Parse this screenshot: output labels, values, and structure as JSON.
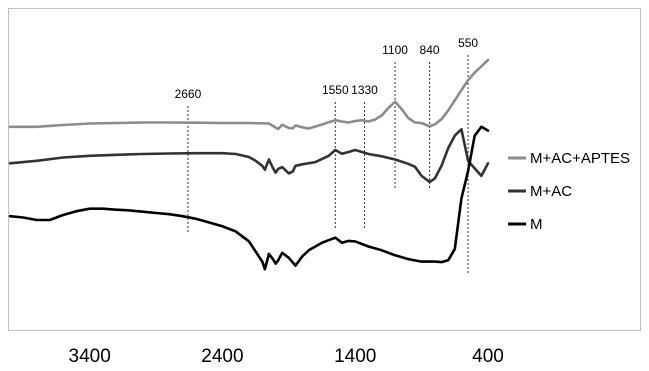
{
  "chart_data": {
    "type": "line",
    "title": "",
    "xlabel": "",
    "ylabel": "",
    "x_reversed": true,
    "xlim": [
      4000,
      400
    ],
    "x_ticks": [
      3400,
      2400,
      1400,
      400
    ],
    "x_tick_labels": [
      "3400",
      "2400",
      "1400",
      "400"
    ],
    "y_axis_shown": false,
    "ylim": [
      0,
      100
    ],
    "grid": false,
    "legend": "right",
    "annotations": [
      {
        "x": 2660,
        "label": "2660"
      },
      {
        "x": 1550,
        "label": "1550"
      },
      {
        "x": 1330,
        "label": "1330"
      },
      {
        "x": 1100,
        "label": "1100"
      },
      {
        "x": 840,
        "label": "840"
      },
      {
        "x": 550,
        "label": "550"
      }
    ],
    "series": [
      {
        "name": "M+AC+APTES",
        "color": "#8c8c8c",
        "x": [
          4000,
          3800,
          3600,
          3400,
          3200,
          3000,
          2800,
          2600,
          2400,
          2200,
          2050,
          2000,
          1980,
          1950,
          1900,
          1870,
          1850,
          1800,
          1750,
          1700,
          1650,
          1600,
          1550,
          1500,
          1450,
          1400,
          1350,
          1300,
          1250,
          1200,
          1150,
          1100,
          1050,
          1000,
          950,
          900,
          840,
          800,
          750,
          700,
          650,
          600,
          550,
          500,
          450,
          400
        ],
        "y": [
          73.5,
          73.5,
          74.2,
          74.8,
          75.0,
          75.2,
          75.2,
          75.1,
          75.0,
          75.0,
          74.8,
          73.2,
          72.6,
          74.3,
          73.0,
          72.9,
          74.0,
          73.3,
          72.8,
          73.6,
          74.4,
          75.3,
          76.1,
          75.6,
          75.2,
          75.8,
          76.1,
          75.6,
          76.4,
          78.0,
          81.0,
          83.4,
          80.5,
          77.0,
          75.2,
          75.0,
          73.6,
          74.5,
          76.5,
          80.0,
          84.0,
          88.0,
          92.0,
          95.0,
          97.5,
          100.0
        ]
      },
      {
        "name": "M+AC",
        "color": "#333333",
        "x": [
          4000,
          3800,
          3600,
          3400,
          3200,
          3000,
          2800,
          2600,
          2400,
          2300,
          2200,
          2150,
          2100,
          2080,
          2050,
          2020,
          2000,
          1980,
          1950,
          1900,
          1870,
          1850,
          1800,
          1700,
          1600,
          1550,
          1500,
          1450,
          1400,
          1350,
          1300,
          1200,
          1100,
          1000,
          950,
          900,
          840,
          800,
          750,
          700,
          650,
          600,
          550,
          500,
          450,
          400
        ],
        "y": [
          59.0,
          60.0,
          61.3,
          62.0,
          62.4,
          62.7,
          62.9,
          63.0,
          63.0,
          62.7,
          61.5,
          60.0,
          58.0,
          56.5,
          60.5,
          57.2,
          55.3,
          56.8,
          57.5,
          55.0,
          55.8,
          58.0,
          58.6,
          59.5,
          62.0,
          64.3,
          62.8,
          63.5,
          64.3,
          63.5,
          62.7,
          61.8,
          60.5,
          58.8,
          57.6,
          54.0,
          51.6,
          53.0,
          58.0,
          65.0,
          70.0,
          72.5,
          60.0,
          57.0,
          54.0,
          59.0
        ]
      },
      {
        "name": "M",
        "color": "#000000",
        "x": [
          4000,
          3900,
          3800,
          3700,
          3600,
          3500,
          3400,
          3300,
          3200,
          3100,
          3000,
          2900,
          2800,
          2700,
          2600,
          2500,
          2400,
          2300,
          2200,
          2150,
          2100,
          2080,
          2050,
          2020,
          2000,
          1980,
          1950,
          1900,
          1850,
          1800,
          1750,
          1700,
          1650,
          1600,
          1550,
          1500,
          1450,
          1400,
          1350,
          1300,
          1200,
          1100,
          1000,
          900,
          800,
          750,
          700,
          650,
          600,
          550,
          500,
          450,
          400
        ],
        "y": [
          38.0,
          37.5,
          36.5,
          36.5,
          38.5,
          40.0,
          41.0,
          41.0,
          40.6,
          40.3,
          39.8,
          39.3,
          38.8,
          38.0,
          37.0,
          35.5,
          34.0,
          32.0,
          28.0,
          24.0,
          20.0,
          17.0,
          23.0,
          21.0,
          19.2,
          20.5,
          23.5,
          21.5,
          18.4,
          22.0,
          24.5,
          26.0,
          27.5,
          28.5,
          29.5,
          27.5,
          28.2,
          28.0,
          27.0,
          26.0,
          24.5,
          22.5,
          21.0,
          20.0,
          20.0,
          19.8,
          20.5,
          25.0,
          45.0,
          56.0,
          70.0,
          73.5,
          72.0
        ]
      }
    ]
  }
}
